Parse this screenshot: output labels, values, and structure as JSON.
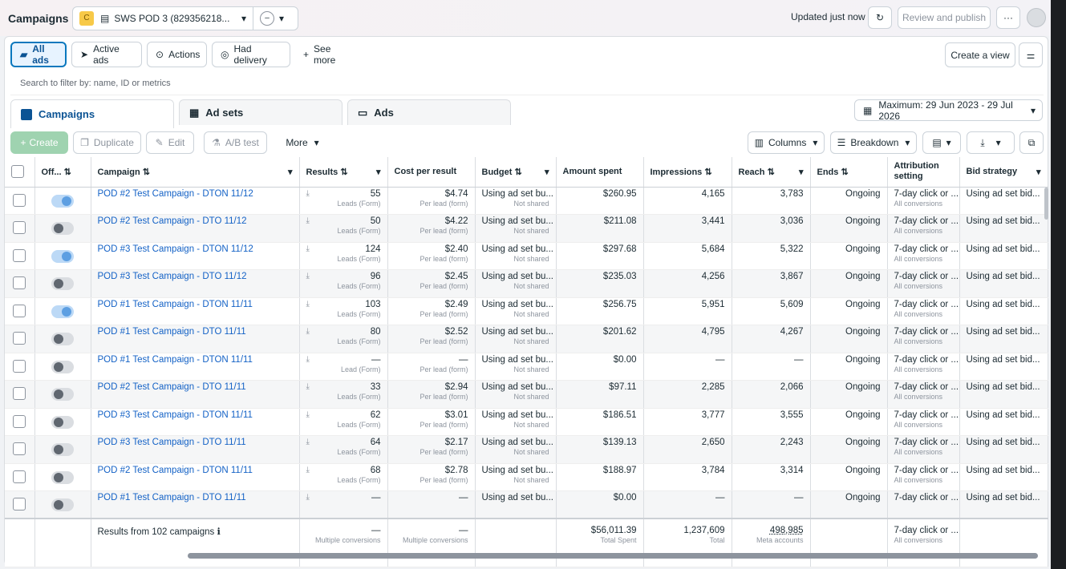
{
  "header": {
    "title": "Campaigns",
    "account_badge": "C",
    "account_name": "SWS POD 3 (829356218...",
    "updated": "Updated just now",
    "review_label": "Review and publish",
    "more_label": "···"
  },
  "filters": [
    {
      "label": "All ads",
      "icon": "folder-icon"
    },
    {
      "label": "Active ads",
      "icon": "send-icon"
    },
    {
      "label": "Actions",
      "icon": "actions-icon"
    },
    {
      "label": "Had delivery",
      "icon": "delivery-icon"
    }
  ],
  "see_more": "See more",
  "create_view": "Create a view",
  "search": {
    "placeholder": "Search to filter by: name, ID or metrics"
  },
  "tabs": [
    {
      "label": "Campaigns"
    },
    {
      "label": "Ad sets"
    },
    {
      "label": "Ads"
    }
  ],
  "date_range": "Maximum: 29 Jun 2023 - 29 Jul 2026",
  "toolbar": {
    "create": "Create",
    "duplicate": "Duplicate",
    "edit": "Edit",
    "ab_test": "A/B test",
    "more": "More",
    "columns": "Columns",
    "breakdown": "Breakdown"
  },
  "columns": {
    "off": "Off...",
    "campaign": "Campaign",
    "results": "Results",
    "cost": "Cost per result",
    "budget": "Budget",
    "amount": "Amount spent",
    "impressions": "Impressions",
    "reach": "Reach",
    "ends": "Ends",
    "attribution": "Attribution setting",
    "bid": "Bid strategy"
  },
  "rows": [
    {
      "on": true,
      "name": "POD #2 Test Campaign - DTON 11/12",
      "results": "55",
      "results_sub": "Leads (Form)",
      "cost": "$4.74",
      "cost_sub": "Per lead (form)",
      "budget": "Using ad set bu...",
      "budget_sub": "Not shared",
      "amount": "$260.95",
      "impressions": "4,165",
      "reach": "3,783",
      "ends": "Ongoing",
      "attr": "7-day click or ...",
      "attr_sub": "All conversions",
      "bid": "Using ad set bid..."
    },
    {
      "on": false,
      "name": "POD #2 Test Campaign - DTO 11/12",
      "results": "50",
      "results_sub": "Leads (Form)",
      "cost": "$4.22",
      "cost_sub": "Per lead (form)",
      "budget": "Using ad set bu...",
      "budget_sub": "Not shared",
      "amount": "$211.08",
      "impressions": "3,441",
      "reach": "3,036",
      "ends": "Ongoing",
      "attr": "7-day click or ...",
      "attr_sub": "All conversions",
      "bid": "Using ad set bid..."
    },
    {
      "on": true,
      "name": "POD #3 Test Campaign - DTON 11/12",
      "results": "124",
      "results_sub": "Leads (Form)",
      "cost": "$2.40",
      "cost_sub": "Per lead (form)",
      "budget": "Using ad set bu...",
      "budget_sub": "Not shared",
      "amount": "$297.68",
      "impressions": "5,684",
      "reach": "5,322",
      "ends": "Ongoing",
      "attr": "7-day click or ...",
      "attr_sub": "All conversions",
      "bid": "Using ad set bid..."
    },
    {
      "on": false,
      "name": "POD #3 Test Campaign - DTO 11/12",
      "results": "96",
      "results_sub": "Leads (Form)",
      "cost": "$2.45",
      "cost_sub": "Per lead (form)",
      "budget": "Using ad set bu...",
      "budget_sub": "Not shared",
      "amount": "$235.03",
      "impressions": "4,256",
      "reach": "3,867",
      "ends": "Ongoing",
      "attr": "7-day click or ...",
      "attr_sub": "All conversions",
      "bid": "Using ad set bid..."
    },
    {
      "on": true,
      "name": "POD #1 Test Campaign - DTON 11/11",
      "results": "103",
      "results_sub": "Leads (Form)",
      "cost": "$2.49",
      "cost_sub": "Per lead (form)",
      "budget": "Using ad set bu...",
      "budget_sub": "Not shared",
      "amount": "$256.75",
      "impressions": "5,951",
      "reach": "5,609",
      "ends": "Ongoing",
      "attr": "7-day click or ...",
      "attr_sub": "All conversions",
      "bid": "Using ad set bid..."
    },
    {
      "on": false,
      "name": "POD #1 Test Campaign - DTO 11/11",
      "results": "80",
      "results_sub": "Leads (Form)",
      "cost": "$2.52",
      "cost_sub": "Per lead (form)",
      "budget": "Using ad set bu...",
      "budget_sub": "Not shared",
      "amount": "$201.62",
      "impressions": "4,795",
      "reach": "4,267",
      "ends": "Ongoing",
      "attr": "7-day click or ...",
      "attr_sub": "All conversions",
      "bid": "Using ad set bid..."
    },
    {
      "on": false,
      "name": "POD #1 Test Campaign - DTON 11/11",
      "results": "—",
      "results_sub": "Lead (Form)",
      "cost": "—",
      "cost_sub": "Per lead (form)",
      "budget": "Using ad set bu...",
      "budget_sub": "Not shared",
      "amount": "$0.00",
      "impressions": "—",
      "reach": "—",
      "ends": "Ongoing",
      "attr": "7-day click or ...",
      "attr_sub": "All conversions",
      "bid": "Using ad set bid..."
    },
    {
      "on": false,
      "name": "POD #2 Test Campaign - DTO 11/11",
      "results": "33",
      "results_sub": "Leads (Form)",
      "cost": "$2.94",
      "cost_sub": "Per lead (form)",
      "budget": "Using ad set bu...",
      "budget_sub": "Not shared",
      "amount": "$97.11",
      "impressions": "2,285",
      "reach": "2,066",
      "ends": "Ongoing",
      "attr": "7-day click or ...",
      "attr_sub": "All conversions",
      "bid": "Using ad set bid..."
    },
    {
      "on": false,
      "name": "POD #3 Test Campaign - DTON 11/11",
      "results": "62",
      "results_sub": "Leads (Form)",
      "cost": "$3.01",
      "cost_sub": "Per lead (form)",
      "budget": "Using ad set bu...",
      "budget_sub": "Not shared",
      "amount": "$186.51",
      "impressions": "3,777",
      "reach": "3,555",
      "ends": "Ongoing",
      "attr": "7-day click or ...",
      "attr_sub": "All conversions",
      "bid": "Using ad set bid..."
    },
    {
      "on": false,
      "name": "POD #3 Test Campaign - DTO 11/11",
      "results": "64",
      "results_sub": "Leads (Form)",
      "cost": "$2.17",
      "cost_sub": "Per lead (form)",
      "budget": "Using ad set bu...",
      "budget_sub": "Not shared",
      "amount": "$139.13",
      "impressions": "2,650",
      "reach": "2,243",
      "ends": "Ongoing",
      "attr": "7-day click or ...",
      "attr_sub": "All conversions",
      "bid": "Using ad set bid..."
    },
    {
      "on": false,
      "name": "POD #2 Test Campaign - DTON 11/11",
      "results": "68",
      "results_sub": "Leads (Form)",
      "cost": "$2.78",
      "cost_sub": "Per lead (form)",
      "budget": "Using ad set bu...",
      "budget_sub": "Not shared",
      "amount": "$188.97",
      "impressions": "3,784",
      "reach": "3,314",
      "ends": "Ongoing",
      "attr": "7-day click or ...",
      "attr_sub": "All conversions",
      "bid": "Using ad set bid..."
    },
    {
      "on": false,
      "name": "POD #1 Test Campaign - DTO 11/11",
      "results": "—",
      "results_sub": "",
      "cost": "—",
      "cost_sub": "",
      "budget": "Using ad set bu...",
      "budget_sub": "",
      "amount": "$0.00",
      "impressions": "—",
      "reach": "—",
      "ends": "Ongoing",
      "attr": "7-day click or ...",
      "attr_sub": "",
      "bid": "Using ad set bid..."
    }
  ],
  "totals": {
    "label": "Results from 102 campaigns",
    "results": "—",
    "results_sub": "Multiple conversions",
    "cost": "—",
    "cost_sub": "Multiple conversions",
    "amount": "$56,011.39",
    "amount_sub": "Total Spent",
    "impressions": "1,237,609",
    "impressions_sub": "Total",
    "reach": "498,985",
    "reach_sub": "Meta accounts",
    "attr": "7-day click or ...",
    "attr_sub": "All conversions"
  }
}
